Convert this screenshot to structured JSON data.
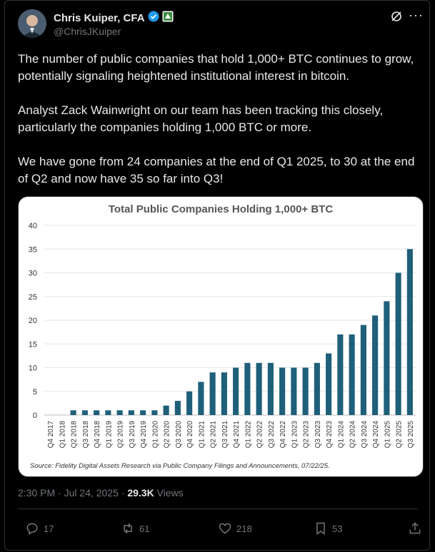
{
  "author": {
    "name": "Chris Kuiper, CFA",
    "handle": "@ChrisJKuiper"
  },
  "tweet": {
    "paragraphs": [
      "The number of public companies that hold 1,000+ BTC continues to grow, potentially signaling heightened institutional interest in bitcoin.",
      "Analyst Zack Wainwright on our team has been tracking this closely, particularly the companies holding 1,000 BTC or more.",
      "We have gone from 24 companies at the end of Q1 2025, to 30 at the end of Q2 and now have 35 so far into Q3!"
    ]
  },
  "meta": {
    "time": "2:30 PM",
    "date": "Jul 24, 2025",
    "views_count": "29.3K",
    "views_label": "Views"
  },
  "actions": {
    "replies": "17",
    "reposts": "61",
    "likes": "218",
    "bookmarks": "53"
  },
  "colors": {
    "bar": "#1f5f7a",
    "verified": "#1d9bf0"
  },
  "chart_data": {
    "type": "bar",
    "title": "Total Public Companies Holding 1,000+ BTC",
    "source": "Source: Fidelity Digital Assets Research via Public Company Filings and Announcements, 07/22/25.",
    "categories": [
      "Q4 2017",
      "Q1 2018",
      "Q2 2018",
      "Q3 2018",
      "Q4 2018",
      "Q1 2019",
      "Q2 2019",
      "Q3 2019",
      "Q4 2019",
      "Q1 2020",
      "Q2 2020",
      "Q3 2020",
      "Q4 2020",
      "Q1 2021",
      "Q2 2021",
      "Q3 2021",
      "Q4 2021",
      "Q1 2022",
      "Q2 2022",
      "Q3 2022",
      "Q4 2022",
      "Q1 2023",
      "Q2 2023",
      "Q3 2023",
      "Q4 2023",
      "Q1 2024",
      "Q2 2024",
      "Q3 2024",
      "Q4 2024",
      "Q1 2025",
      "Q2 2025",
      "Q3 2025"
    ],
    "values": [
      0,
      0,
      1,
      1,
      1,
      1,
      1,
      1,
      1,
      1,
      2,
      3,
      5,
      7,
      9,
      9,
      10,
      11,
      11,
      11,
      10,
      10,
      10,
      11,
      13,
      17,
      17,
      19,
      21,
      24,
      30,
      35
    ],
    "yticks": [
      0,
      5,
      10,
      15,
      20,
      25,
      30,
      35,
      40
    ],
    "ylim": [
      0,
      40
    ],
    "grid": true
  }
}
